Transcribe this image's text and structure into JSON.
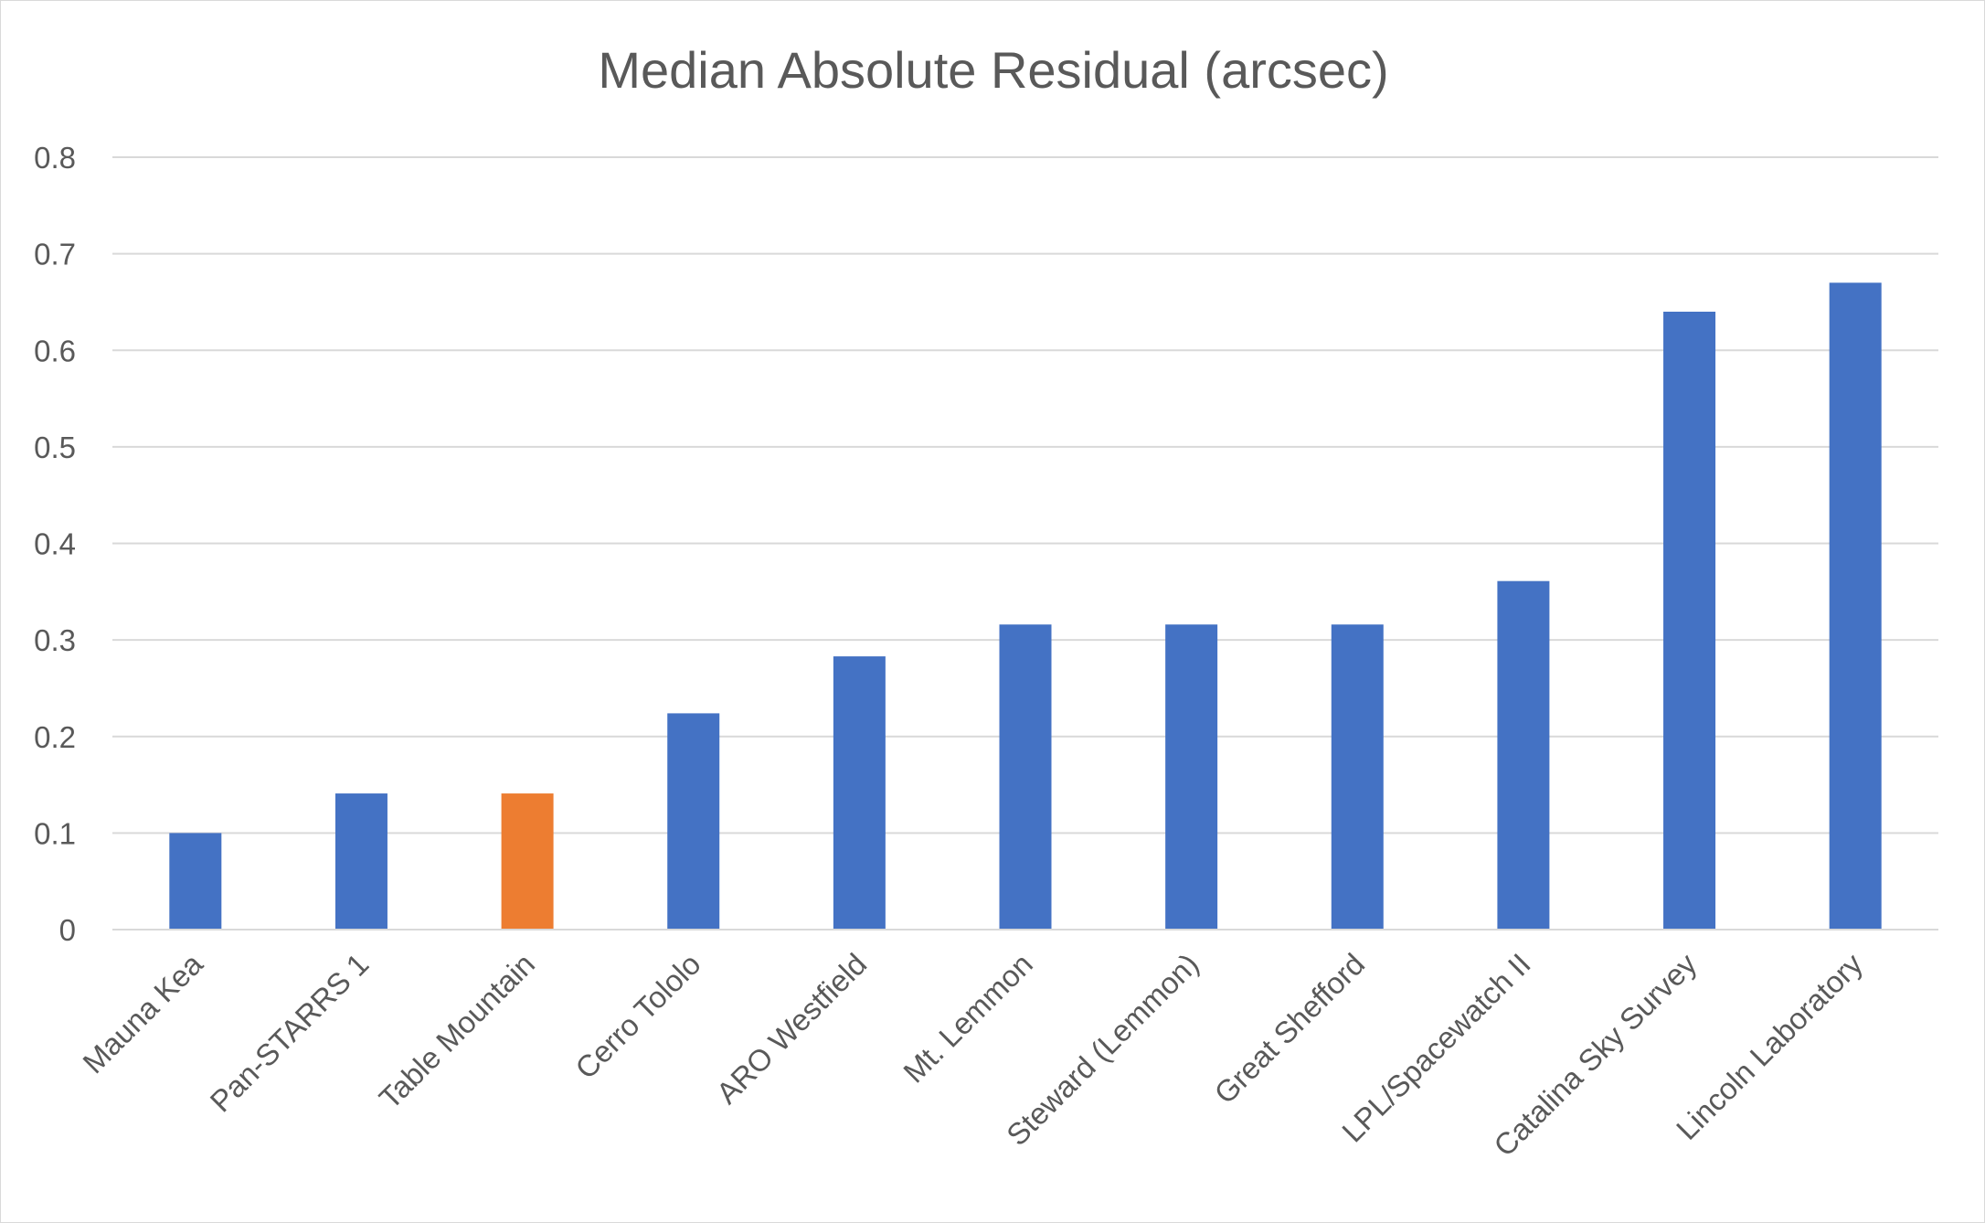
{
  "chart_data": {
    "type": "bar",
    "title": "Median Absolute Residual (arcsec)",
    "xlabel": "",
    "ylabel": "",
    "ylim": [
      0,
      0.8
    ],
    "yticks": [
      "0",
      "0.1",
      "0.2",
      "0.3",
      "0.4",
      "0.5",
      "0.6",
      "0.7",
      "0.8"
    ],
    "grid": true,
    "legend": "none",
    "categories": [
      "Mauna Kea",
      "Pan-STARRS 1",
      "Table Mountain",
      "Cerro Tololo",
      "ARO Westfield",
      "Mt. Lemmon",
      "Steward (Lemmon)",
      "Great Shefford",
      "LPL/Spacewatch II",
      "Catalina Sky Survey",
      "Lincoln Laboratory"
    ],
    "values": [
      0.1,
      0.141,
      0.141,
      0.224,
      0.283,
      0.316,
      0.316,
      0.316,
      0.361,
      0.64,
      0.67
    ],
    "colors": [
      "#4472c4",
      "#4472c4",
      "#ed7d31",
      "#4472c4",
      "#4472c4",
      "#4472c4",
      "#4472c4",
      "#4472c4",
      "#4472c4",
      "#4472c4",
      "#4472c4"
    ]
  }
}
